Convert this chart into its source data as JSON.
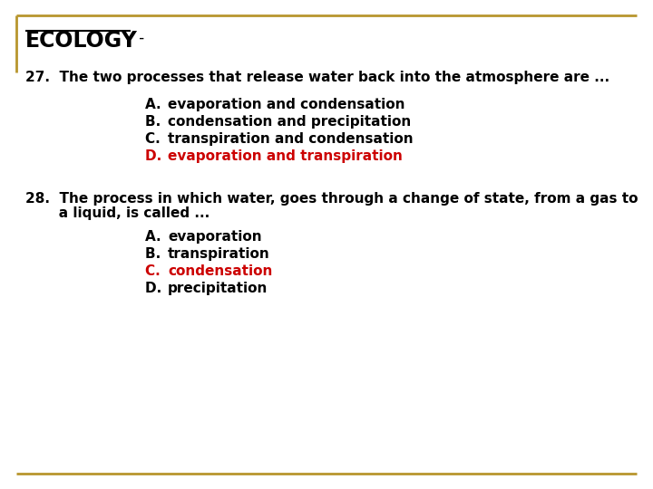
{
  "background_color": "#ffffff",
  "border_color": "#b8962e",
  "title": "ECOLOGY",
  "title_dash": " -",
  "q1_text": "27.  The two processes that release water back into the atmosphere are ...",
  "q1_options": [
    {
      "label": "A.  ",
      "text": "evaporation and condensation",
      "color": "#000000"
    },
    {
      "label": "B.  ",
      "text": "condensation and precipitation",
      "color": "#000000"
    },
    {
      "label": "C.  ",
      "text": "transpiration and condensation",
      "color": "#000000"
    },
    {
      "label": "D.  ",
      "text": "evaporation and transpiration",
      "color": "#cc0000"
    }
  ],
  "q2_line1": "28.  The process in which water, goes through a change of state, from a gas to",
  "q2_line2": "       a liquid, is called ...",
  "q2_options": [
    {
      "label": "A.  ",
      "text": "evaporation",
      "color": "#000000"
    },
    {
      "label": "B.  ",
      "text": "transpiration",
      "color": "#000000"
    },
    {
      "label": "C.  ",
      "text": "condensation",
      "color": "#cc0000"
    },
    {
      "label": "D.  ",
      "text": "precipitation",
      "color": "#000000"
    }
  ],
  "font_size_title": 17,
  "font_size_question": 11,
  "font_size_options": 11
}
